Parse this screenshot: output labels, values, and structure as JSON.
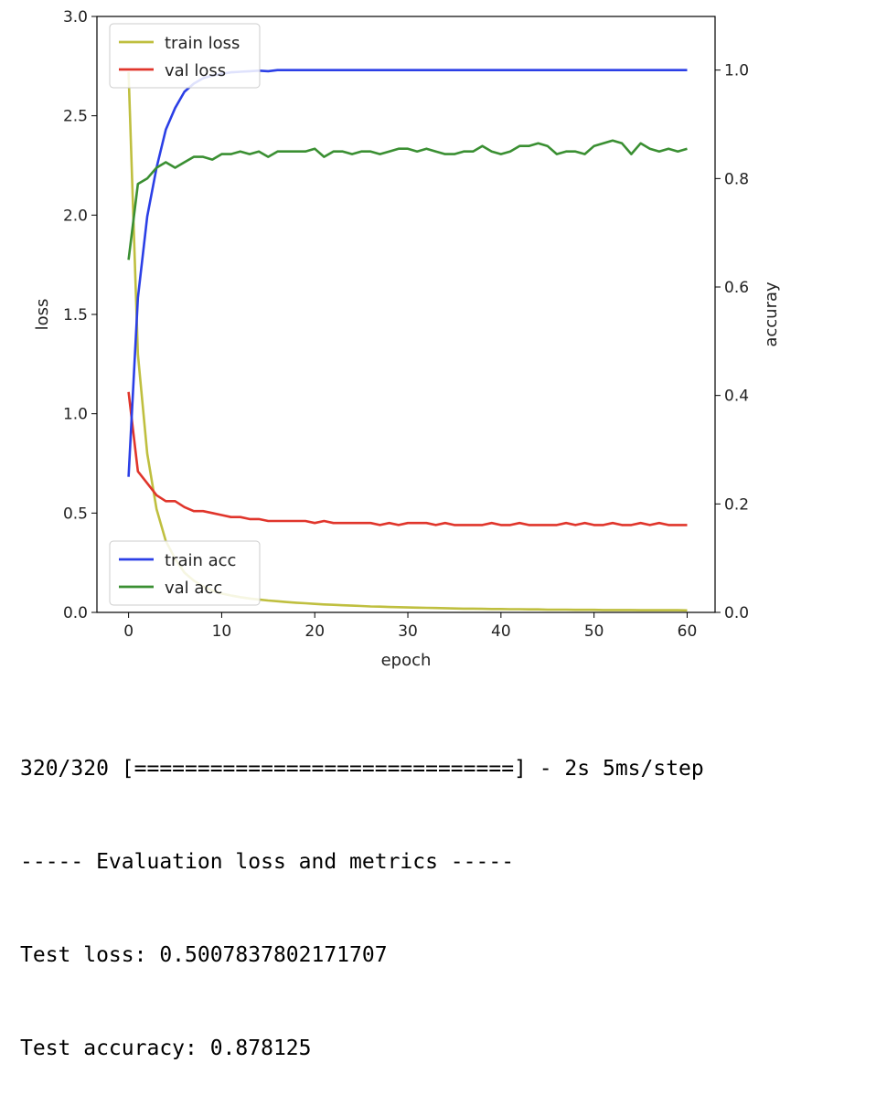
{
  "chart_data": {
    "type": "line",
    "xlabel": "epoch",
    "ylabel_left": "loss",
    "ylabel_right": "accuray",
    "xlim": [
      -3.4,
      63
    ],
    "ylim_left": [
      0,
      3.0
    ],
    "ylim_right": [
      0,
      1.0989
    ],
    "x_ticks": [
      0,
      10,
      20,
      30,
      40,
      50,
      60
    ],
    "y_ticks_left": [
      "0.0",
      "0.5",
      "1.0",
      "1.5",
      "2.0",
      "2.5",
      "3.0"
    ],
    "y_ticks_right": [
      "0.0",
      "0.2",
      "0.4",
      "0.6",
      "0.8",
      "1.0"
    ],
    "grid": false,
    "legend_loss": {
      "placement": "upper-left",
      "entries": [
        "train loss",
        "val loss"
      ]
    },
    "legend_acc": {
      "placement": "lower-left",
      "entries": [
        "train acc",
        "val acc"
      ]
    },
    "x": [
      0,
      1,
      2,
      3,
      4,
      5,
      6,
      7,
      8,
      9,
      10,
      11,
      12,
      13,
      14,
      15,
      16,
      17,
      18,
      19,
      20,
      21,
      22,
      23,
      24,
      25,
      26,
      27,
      28,
      29,
      30,
      31,
      32,
      33,
      34,
      35,
      36,
      37,
      38,
      39,
      40,
      41,
      42,
      43,
      44,
      45,
      46,
      47,
      48,
      49,
      50,
      51,
      52,
      53,
      54,
      55,
      56,
      57,
      58,
      59,
      60
    ],
    "series": [
      {
        "name": "train loss",
        "axis": "left",
        "color": "#bfbf3f",
        "values": [
          2.72,
          1.3,
          0.8,
          0.52,
          0.36,
          0.27,
          0.2,
          0.16,
          0.13,
          0.11,
          0.095,
          0.085,
          0.077,
          0.07,
          0.065,
          0.06,
          0.056,
          0.052,
          0.049,
          0.046,
          0.043,
          0.04,
          0.038,
          0.036,
          0.034,
          0.032,
          0.03,
          0.029,
          0.027,
          0.026,
          0.025,
          0.024,
          0.023,
          0.022,
          0.021,
          0.02,
          0.019,
          0.019,
          0.018,
          0.017,
          0.017,
          0.016,
          0.016,
          0.015,
          0.015,
          0.014,
          0.014,
          0.014,
          0.013,
          0.013,
          0.013,
          0.012,
          0.012,
          0.012,
          0.012,
          0.011,
          0.011,
          0.011,
          0.011,
          0.011,
          0.01
        ]
      },
      {
        "name": "val loss",
        "axis": "left",
        "color": "#e0352b",
        "values": [
          1.11,
          0.71,
          0.65,
          0.59,
          0.56,
          0.56,
          0.53,
          0.51,
          0.51,
          0.5,
          0.49,
          0.48,
          0.48,
          0.47,
          0.47,
          0.46,
          0.46,
          0.46,
          0.46,
          0.46,
          0.45,
          0.46,
          0.45,
          0.45,
          0.45,
          0.45,
          0.45,
          0.44,
          0.45,
          0.44,
          0.45,
          0.45,
          0.45,
          0.44,
          0.45,
          0.44,
          0.44,
          0.44,
          0.44,
          0.45,
          0.44,
          0.44,
          0.45,
          0.44,
          0.44,
          0.44,
          0.44,
          0.45,
          0.44,
          0.45,
          0.44,
          0.44,
          0.45,
          0.44,
          0.44,
          0.45,
          0.44,
          0.45,
          0.44,
          0.44,
          0.44
        ]
      },
      {
        "name": "train acc",
        "axis": "right",
        "color": "#2b3fe6",
        "values": [
          0.25,
          0.58,
          0.73,
          0.82,
          0.89,
          0.93,
          0.96,
          0.975,
          0.985,
          0.99,
          0.993,
          0.996,
          0.997,
          0.998,
          0.999,
          0.998,
          1.0,
          1.0,
          1.0,
          1.0,
          1.0,
          1.0,
          1.0,
          1.0,
          1.0,
          1.0,
          1.0,
          1.0,
          1.0,
          1.0,
          1.0,
          1.0,
          1.0,
          1.0,
          1.0,
          1.0,
          1.0,
          1.0,
          1.0,
          1.0,
          1.0,
          1.0,
          1.0,
          1.0,
          1.0,
          1.0,
          1.0,
          1.0,
          1.0,
          1.0,
          1.0,
          1.0,
          1.0,
          1.0,
          1.0,
          1.0,
          1.0,
          1.0,
          1.0,
          1.0,
          1.0
        ]
      },
      {
        "name": "val acc",
        "axis": "right",
        "color": "#3a8f32",
        "values": [
          0.65,
          0.79,
          0.8,
          0.82,
          0.83,
          0.82,
          0.83,
          0.84,
          0.84,
          0.835,
          0.845,
          0.845,
          0.85,
          0.845,
          0.85,
          0.84,
          0.85,
          0.85,
          0.85,
          0.85,
          0.855,
          0.84,
          0.85,
          0.85,
          0.845,
          0.85,
          0.85,
          0.845,
          0.85,
          0.855,
          0.855,
          0.85,
          0.855,
          0.85,
          0.845,
          0.845,
          0.85,
          0.85,
          0.86,
          0.85,
          0.845,
          0.85,
          0.86,
          0.86,
          0.865,
          0.86,
          0.845,
          0.85,
          0.85,
          0.845,
          0.86,
          0.865,
          0.87,
          0.865,
          0.845,
          0.865,
          0.855,
          0.85,
          0.855,
          0.85,
          0.855
        ]
      }
    ]
  },
  "console": {
    "progress_line": "320/320 [==============================] - 2s 5ms/step",
    "header_line": "----- Evaluation loss and metrics -----",
    "test_loss_line": "Test loss: 0.5007837802171707",
    "test_accuracy_line": "Test accuracy: 0.878125"
  }
}
